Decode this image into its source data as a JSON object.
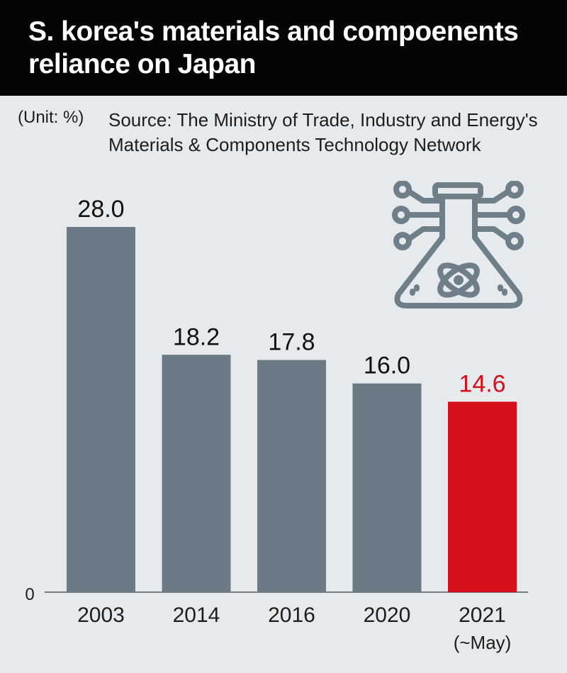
{
  "header": {
    "title": "S. korea's materials and compoenents reliance on Japan"
  },
  "unit_label": "(Unit: %)",
  "source_text": "Source: The Ministry of Trade, Industry and Energy's Materials & Components Technology Network",
  "icon": "flask-circuit-icon",
  "colors": {
    "bar": "#6b7b86",
    "highlight": "#d50f1b",
    "background": "#e7eaec",
    "header": "#050505"
  },
  "chart_data": {
    "type": "bar",
    "title": "S. korea's materials and compoenents reliance on Japan",
    "categories": [
      "2003",
      "2014",
      "2016",
      "2020",
      "2021"
    ],
    "category_sublabels": [
      "",
      "",
      "",
      "",
      "(~May)"
    ],
    "values": [
      28.0,
      18.2,
      17.8,
      16.0,
      14.6
    ],
    "value_labels": [
      "28.0",
      "18.2",
      "17.8",
      "16.0",
      "14.6"
    ],
    "highlight_index": 4,
    "ylim": [
      0,
      30
    ],
    "y_tick_labels": [
      "0"
    ],
    "xlabel": "",
    "ylabel": "",
    "grid": false,
    "legend": false
  }
}
